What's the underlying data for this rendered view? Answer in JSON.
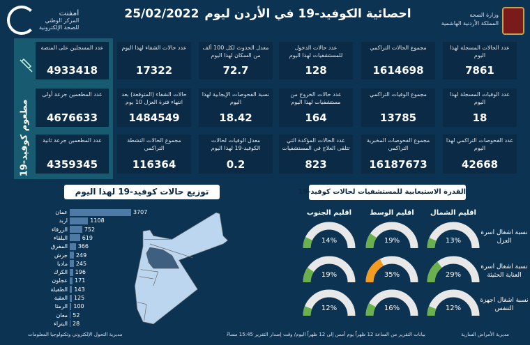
{
  "header": {
    "title": "احصائية الكوفيد-19 في الأردن ليوم",
    "date": "25/02/2022",
    "ministry_line1": "وزارة الصحة",
    "ministry_line2": "المملكة الأردنية الهاشمية",
    "logo_name": "امفنت",
    "logo_sub1": "المركز الوطني",
    "logo_sub2": "للصحة الإلكترونية"
  },
  "vaccine": {
    "title": "مطعوم كوفيد-19",
    "icon": "syringe-icon",
    "cards": [
      {
        "label": "عدد المسجلين على المنصة",
        "value": "4933418"
      },
      {
        "label": "عدد المطعمين جرعة أولى",
        "value": "4676633"
      },
      {
        "label": "عدد المطعمين جرعة ثانية",
        "value": "4359345"
      }
    ]
  },
  "stats": [
    {
      "label": "عدد الحالات المسجلة لهذا اليوم",
      "value": "7861"
    },
    {
      "label": "مجموع الحالات التراكمي",
      "value": "1614698"
    },
    {
      "label": "عدد حالات الدخول للمستشفيات لهذا اليوم",
      "value": "128"
    },
    {
      "label": "معدل الحدوث لكل 100 ألف من السكان لهذا اليوم",
      "value": "72.7"
    },
    {
      "label": "عدد حالات الشفاء لهذا اليوم",
      "value": "17322"
    },
    {
      "label": "عدد الوفيات المسجلة لهذا اليوم",
      "value": "18"
    },
    {
      "label": "مجموع الوفيات التراكمي",
      "value": "13785"
    },
    {
      "label": "عدد حالات الخروج من مستشفيات لهذا اليوم",
      "value": "164"
    },
    {
      "label": "نسبة الفحوصات الإيجابية لهذا اليوم",
      "value": "18.42"
    },
    {
      "label": "حالات الشفاء (المتوقعة) بعد انتهاء فترة العزل 10 يوم",
      "value": "1484549"
    },
    {
      "label": "عدد الفحوصات التراكمي لهذا اليوم",
      "value": "42668"
    },
    {
      "label": "مجموع الفحوصات المخبرية التراكمي",
      "value": "16187673"
    },
    {
      "label": "عدد الحالات المؤكدة التي تتلقى العلاج في المستشفيات",
      "value": "823"
    },
    {
      "label": "معدل الوفيات لحالات الكوفيد-19 لهذا اليوم",
      "value": "0.2"
    },
    {
      "label": "مجموع الحالات النشطة التراكمي",
      "value": "116364"
    }
  ],
  "chart_data": {
    "type": "bar",
    "title": "توزيع حالات كوفيد-19 لهذا اليوم",
    "orientation": "horizontal",
    "categories": [
      "عمان",
      "اربد",
      "الزرقاء",
      "البلقاء",
      "المفرق",
      "جرش",
      "مادبا",
      "الكرك",
      "عجلون",
      "الطفيلة",
      "العقبة",
      "الرمثا",
      "معان",
      "البتراء"
    ],
    "values": [
      3707,
      1108,
      752,
      619,
      366,
      249,
      245,
      196,
      171,
      143,
      125,
      100,
      52,
      28
    ],
    "bar_color": "#4f7aa6"
  },
  "map": {
    "highlight_color": "#3e5f80",
    "base_color": "#bcd6ef"
  },
  "capacity": {
    "title": "القدرة الاستيعابية للمستشفيات لحالات كوفيد-19",
    "regions": [
      "اقليم الشمال",
      "اقليم الوسط",
      "اقليم الجنوب"
    ],
    "rows": [
      {
        "label": "نسبة اشغال اسرة العزل",
        "values": [
          13,
          19,
          14
        ]
      },
      {
        "label": "نسبة اشغال اسرة العناية الحثيثة",
        "values": [
          29,
          35,
          19
        ]
      },
      {
        "label": "نسبة اشغال اجهزة التنفس",
        "values": [
          12,
          16,
          12
        ]
      }
    ],
    "colors": {
      "normal": "#6ab04c",
      "warning": "#f39c1f",
      "track": "#e8e8e8"
    }
  },
  "footer": {
    "right": "مديرية الأمراض السارية",
    "middle": "بيانات التقرير من الساعة 12 ظهراً يوم أمس إلى 12 ظهراً اليوم/ وقت إصدار التقرير 15:45 مساءً",
    "left": "مديرية التحول الإلكتروني وتكنولوجيا المعلومات"
  }
}
